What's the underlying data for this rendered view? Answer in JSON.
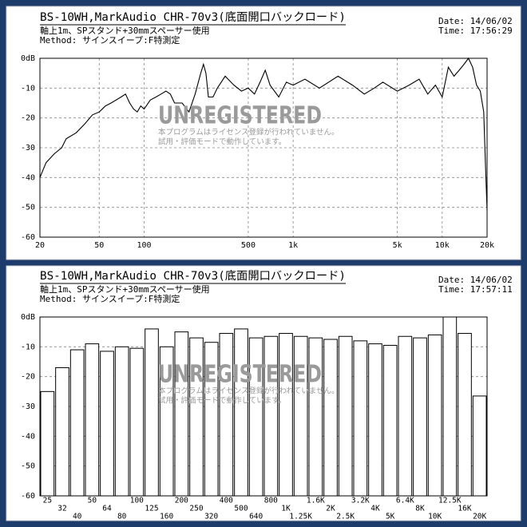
{
  "chart_data": [
    {
      "type": "line",
      "title": "BS-10WH,MarkAudio CHR-70v3(底面開口バックロード)",
      "subtitle": [
        "軸上1m、SPスタンド+30mmスペーサー使用",
        "Method: サインスイープ:F特測定"
      ],
      "date": "Date: 14/06/02",
      "time": "Time: 17:56:29",
      "watermark": [
        "UNREGISTERED",
        "本プログラムはライセンス登録が行われていません。",
        "試用・評価モードで動作しています。"
      ],
      "xscale": "log",
      "grid": true,
      "color": "#000000",
      "x": [
        20,
        22,
        25,
        28,
        30,
        35,
        40,
        45,
        50,
        55,
        60,
        70,
        75,
        80,
        85,
        90,
        95,
        100,
        110,
        120,
        130,
        140,
        150,
        160,
        180,
        200,
        220,
        240,
        250,
        260,
        270,
        290,
        310,
        350,
        400,
        450,
        500,
        550,
        600,
        650,
        700,
        800,
        900,
        1000,
        1200,
        1500,
        2000,
        2500,
        3000,
        3500,
        4000,
        5000,
        6000,
        7000,
        8000,
        9000,
        10000,
        11000,
        12000,
        13000,
        14000,
        15000,
        16000,
        17000,
        18000,
        19000,
        19500,
        20000
      ],
      "values": [
        -40,
        -35,
        -32,
        -30,
        -27,
        -25,
        -22,
        -19,
        -18,
        -16,
        -15,
        -13,
        -12,
        -15,
        -17,
        -18,
        -16,
        -17,
        -14,
        -13,
        -12,
        -11,
        -12,
        -15,
        -15,
        -18,
        -12,
        -5,
        -2,
        -5,
        -13,
        -13,
        -10,
        -6,
        -9,
        -11,
        -10,
        -12,
        -8,
        -4,
        -9,
        -13,
        -8,
        -9,
        -7,
        -10,
        -6,
        -9,
        -12,
        -10,
        -8,
        -11,
        -9,
        -7,
        -12,
        -9,
        -13,
        -3,
        -6,
        -4,
        -2,
        0,
        -3,
        -9,
        -11,
        -18,
        -35,
        -51
      ],
      "xlim": [
        20,
        20000
      ],
      "xticks": [
        20,
        50,
        100,
        500,
        {
          "value": 1000,
          "label": "1k"
        },
        {
          "value": 5000,
          "label": "5k"
        },
        {
          "value": 10000,
          "label": "10k"
        },
        {
          "value": 20000,
          "label": "20k"
        }
      ],
      "ylim": [
        -60,
        0
      ],
      "yticks": [
        {
          "value": 0,
          "label": "0dB"
        },
        -10,
        -20,
        -30,
        -40,
        -50,
        -60
      ]
    },
    {
      "type": "bar",
      "title": "BS-10WH,MarkAudio CHR-70v3(底面開口バックロード)",
      "subtitle": [
        "軸上1m、SPスタンド+30mmスペーサー使用",
        "Method: サインスイープ:F特測定"
      ],
      "date": "Date: 14/06/02",
      "time": "Time: 17:57:11",
      "watermark": [
        "UNREGISTERED",
        "本プログラムはライセンス登録が行われていません。",
        "試用・評価モードで動作しています。"
      ],
      "grid": true,
      "color": "#ffffff",
      "categories": [
        "25",
        "32",
        "40",
        "50",
        "64",
        "80",
        "100",
        "125",
        "160",
        "200",
        "250",
        "320",
        "400",
        "500",
        "640",
        "800",
        "1K",
        "1.25K",
        "1.6K",
        "2K",
        "2.5K",
        "3.2K",
        "4K",
        "5K",
        "6.4K",
        "8K",
        "10K",
        "12.5K",
        "16K",
        "20K"
      ],
      "values": [
        -25,
        -17,
        -11,
        -9,
        -11.5,
        -10,
        -10.5,
        -4,
        -10,
        -5,
        -7,
        -8.5,
        -5.5,
        -4,
        -7,
        -6.5,
        -5.5,
        -6.5,
        -7,
        -7.5,
        -6.5,
        -8,
        -9,
        -9.5,
        -6.5,
        -7,
        -6,
        0,
        -5.5,
        -26.5
      ],
      "ylim": [
        -60,
        0
      ],
      "yticks": [
        {
          "value": 0,
          "label": "0dB"
        },
        -10,
        -20,
        -30,
        -40,
        -50,
        -60
      ]
    }
  ]
}
